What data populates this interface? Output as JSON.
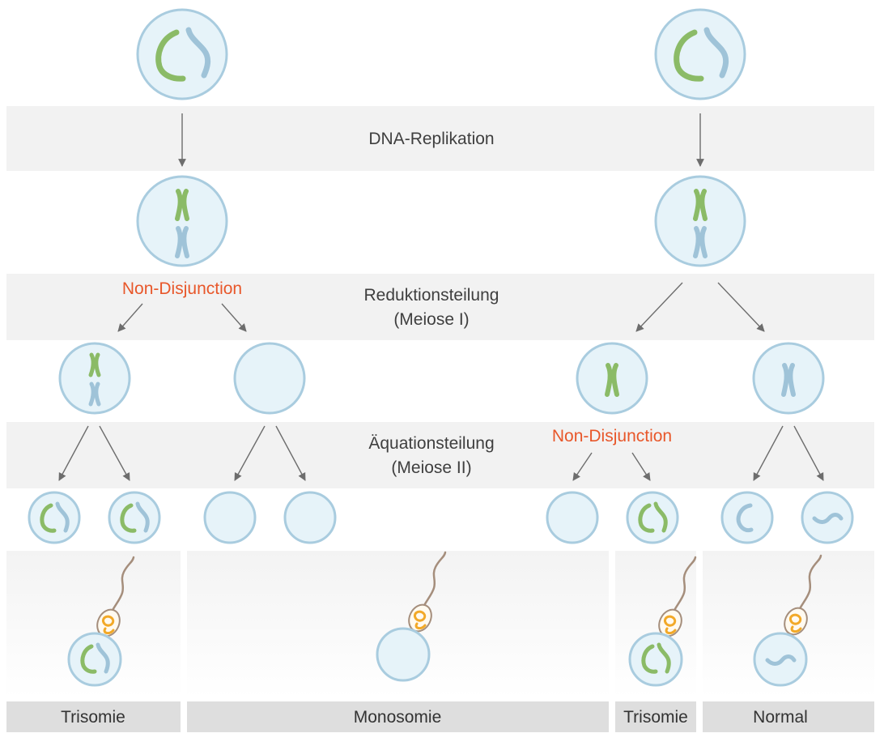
{
  "stages": {
    "dna_replication": "DNA-Replikation",
    "reduction_line1": "Reduktionsteilung",
    "reduction_line2": "(Meiose I)",
    "equational_line1": "Äquationsteilung",
    "equational_line2": "(Meiose II)"
  },
  "events": {
    "nondisjunction_left": "Non-Disjunction",
    "nondisjunction_right": "Non-Disjunction"
  },
  "outcomes": {
    "trisomy_left": "Trisomie",
    "monosomy": "Monosomie",
    "trisomy_right": "Trisomie",
    "normal": "Normal"
  },
  "colors": {
    "band_gray": "#f2f2f2",
    "outcome_bar": "#dedede",
    "cell_fill": "#e6f3f9",
    "cell_stroke": "#a9ccdf",
    "chromosome_green": "#8bbb67",
    "chromosome_blue": "#9fc3d8",
    "arrow": "#6d6d6d",
    "nondisjunction_orange": "#e8572a",
    "sperm_orange": "#f2a928",
    "sperm_tail": "#a58e7c"
  }
}
